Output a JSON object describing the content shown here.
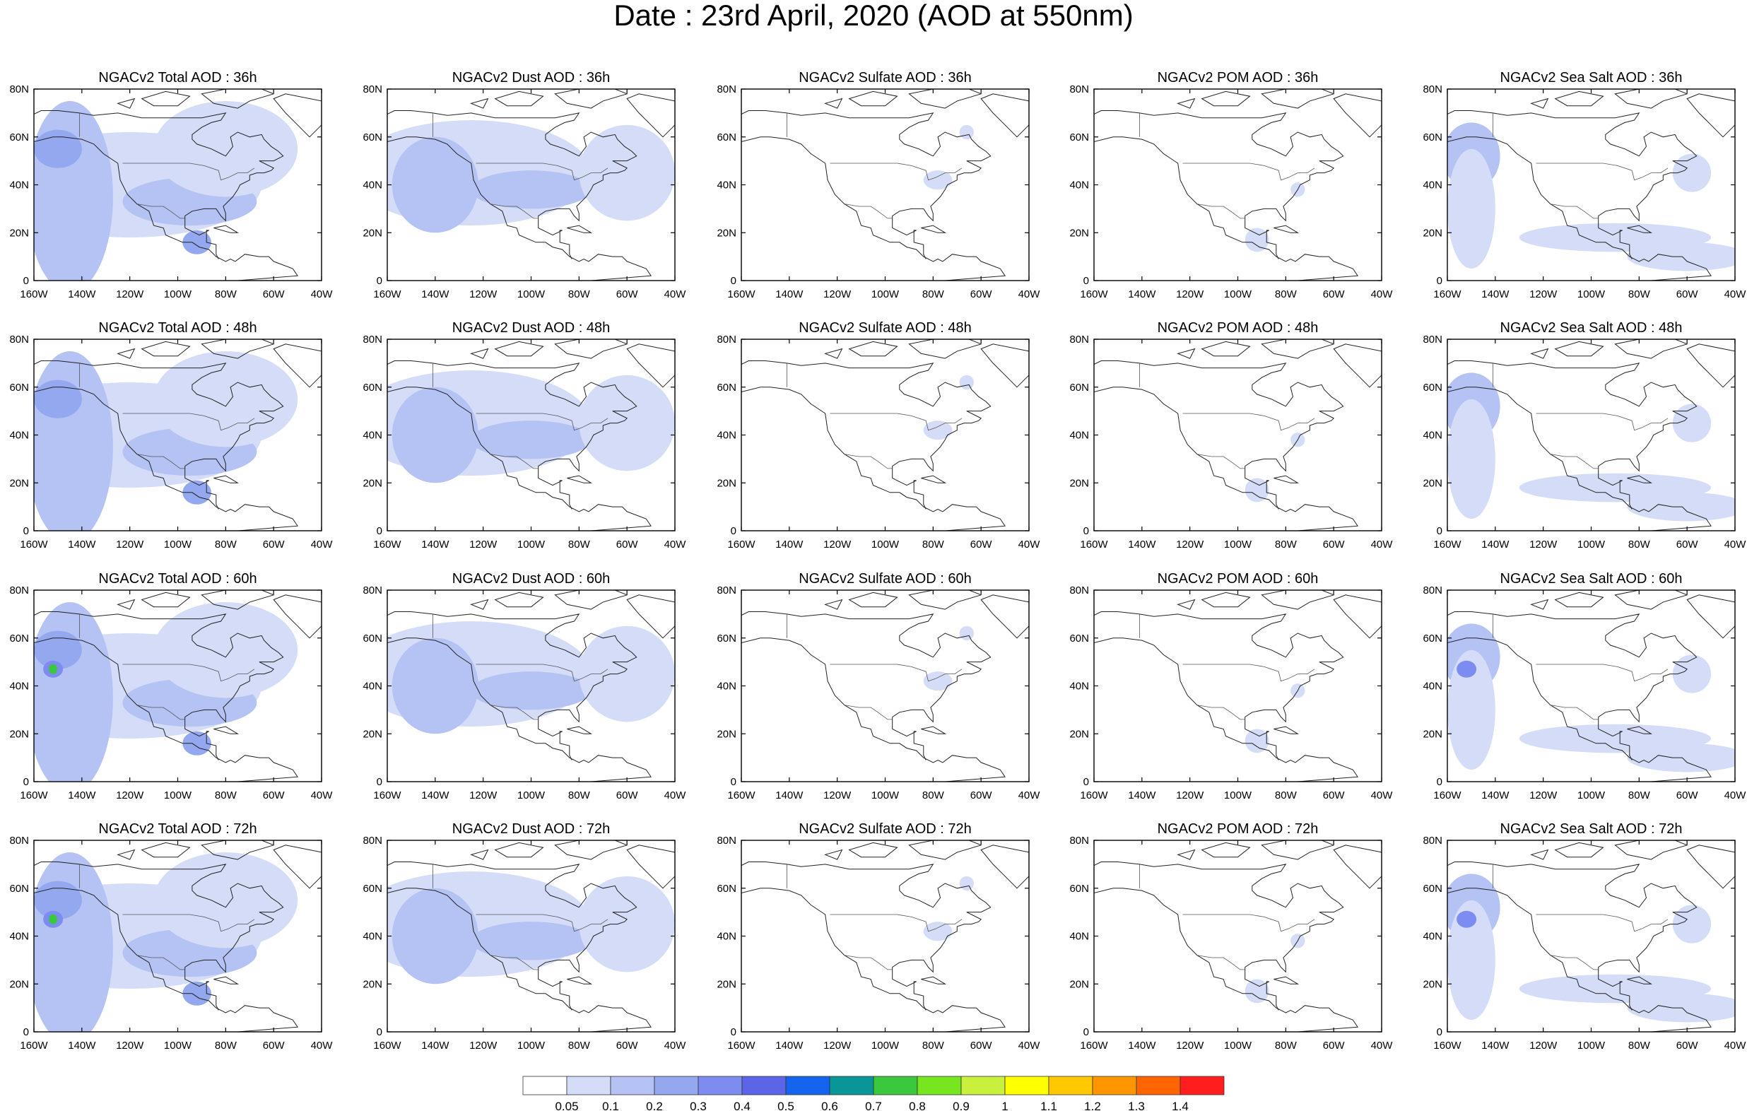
{
  "title": "Date : 23rd April, 2020 (AOD at 550nm)",
  "chart_data": {
    "type": "heatmap",
    "map_extent": {
      "lon": [
        -160,
        -40
      ],
      "lat": [
        0,
        80
      ]
    },
    "x_ticks": [
      "160W",
      "140W",
      "120W",
      "100W",
      "80W",
      "60W",
      "40W"
    ],
    "y_ticks": [
      "0",
      "20N",
      "40N",
      "60N",
      "80N"
    ],
    "rows": [
      "36h",
      "48h",
      "60h",
      "72h"
    ],
    "columns": [
      "Total",
      "Dust",
      "Sulfate",
      "POM",
      "Sea Salt"
    ],
    "panels": [
      [
        "NGACv2 Total AOD : 36h",
        "NGACv2 Dust AOD : 36h",
        "NGACv2 Sulfate AOD : 36h",
        "NGACv2 POM AOD : 36h",
        "NGACv2 Sea Salt AOD : 36h"
      ],
      [
        "NGACv2 Total AOD : 48h",
        "NGACv2 Dust AOD : 48h",
        "NGACv2 Sulfate AOD : 48h",
        "NGACv2 POM AOD : 48h",
        "NGACv2 Sea Salt AOD : 48h"
      ],
      [
        "NGACv2 Total AOD : 60h",
        "NGACv2 Dust AOD : 60h",
        "NGACv2 Sulfate AOD : 60h",
        "NGACv2 POM AOD : 60h",
        "NGACv2 Sea Salt AOD : 60h"
      ],
      [
        "NGACv2 Total AOD : 72h",
        "NGACv2 Dust AOD : 72h",
        "NGACv2 Sulfate AOD : 72h",
        "NGACv2 POM AOD : 72h",
        "NGACv2 Sea Salt  AOD : 72h"
      ]
    ],
    "colorbar": {
      "levels": [
        "0.05",
        "0.1",
        "0.2",
        "0.3",
        "0.4",
        "0.5",
        "0.6",
        "0.7",
        "0.8",
        "0.9",
        "1",
        "1.1",
        "1.2",
        "1.3",
        "1.4"
      ],
      "colors": [
        "#ffffff",
        "#d4dcf8",
        "#b4c2f4",
        "#94a8f0",
        "#7c8cf0",
        "#5c64e8",
        "#1464f0",
        "#0a9696",
        "#3cc83c",
        "#78e61e",
        "#c8f03c",
        "#ffff00",
        "#ffc800",
        "#ff9600",
        "#ff6400",
        "#ff1e1e"
      ]
    },
    "plumes": {
      "Total": [
        {
          "lon": -120,
          "lat": 40,
          "rx": 55,
          "ry": 22,
          "level": 1
        },
        {
          "lon": -145,
          "lat": 35,
          "rx": 18,
          "ry": 40,
          "level": 2
        },
        {
          "lon": -95,
          "lat": 33,
          "rx": 28,
          "ry": 10,
          "level": 2
        },
        {
          "lon": -150,
          "lat": 55,
          "rx": 10,
          "ry": 8,
          "level": 3
        },
        {
          "lon": -80,
          "lat": 55,
          "rx": 30,
          "ry": 20,
          "level": 1
        },
        {
          "lon": -92,
          "lat": 16,
          "rx": 6,
          "ry": 5,
          "level": 3
        }
      ],
      "Dust": [
        {
          "lon": -125,
          "lat": 45,
          "rx": 50,
          "ry": 22,
          "level": 1
        },
        {
          "lon": -140,
          "lat": 40,
          "rx": 18,
          "ry": 20,
          "level": 2
        },
        {
          "lon": -100,
          "lat": 38,
          "rx": 25,
          "ry": 8,
          "level": 2
        },
        {
          "lon": -60,
          "lat": 45,
          "rx": 20,
          "ry": 20,
          "level": 1
        }
      ],
      "Sulfate": [
        {
          "lon": -78,
          "lat": 42,
          "rx": 6,
          "ry": 4,
          "level": 1
        },
        {
          "lon": -66,
          "lat": 62,
          "rx": 3,
          "ry": 3,
          "level": 1
        }
      ],
      "POM": [
        {
          "lon": -92,
          "lat": 17,
          "rx": 5,
          "ry": 5,
          "level": 1
        },
        {
          "lon": -75,
          "lat": 38,
          "rx": 3,
          "ry": 3,
          "level": 1
        }
      ],
      "Sea Salt": [
        {
          "lon": -150,
          "lat": 52,
          "rx": 12,
          "ry": 14,
          "level": 2
        },
        {
          "lon": -150,
          "lat": 30,
          "rx": 10,
          "ry": 25,
          "level": 1
        },
        {
          "lon": -90,
          "lat": 18,
          "rx": 40,
          "ry": 6,
          "level": 1
        },
        {
          "lon": -60,
          "lat": 10,
          "rx": 25,
          "ry": 6,
          "level": 1
        },
        {
          "lon": -58,
          "lat": 45,
          "rx": 8,
          "ry": 8,
          "level": 1
        }
      ]
    }
  }
}
